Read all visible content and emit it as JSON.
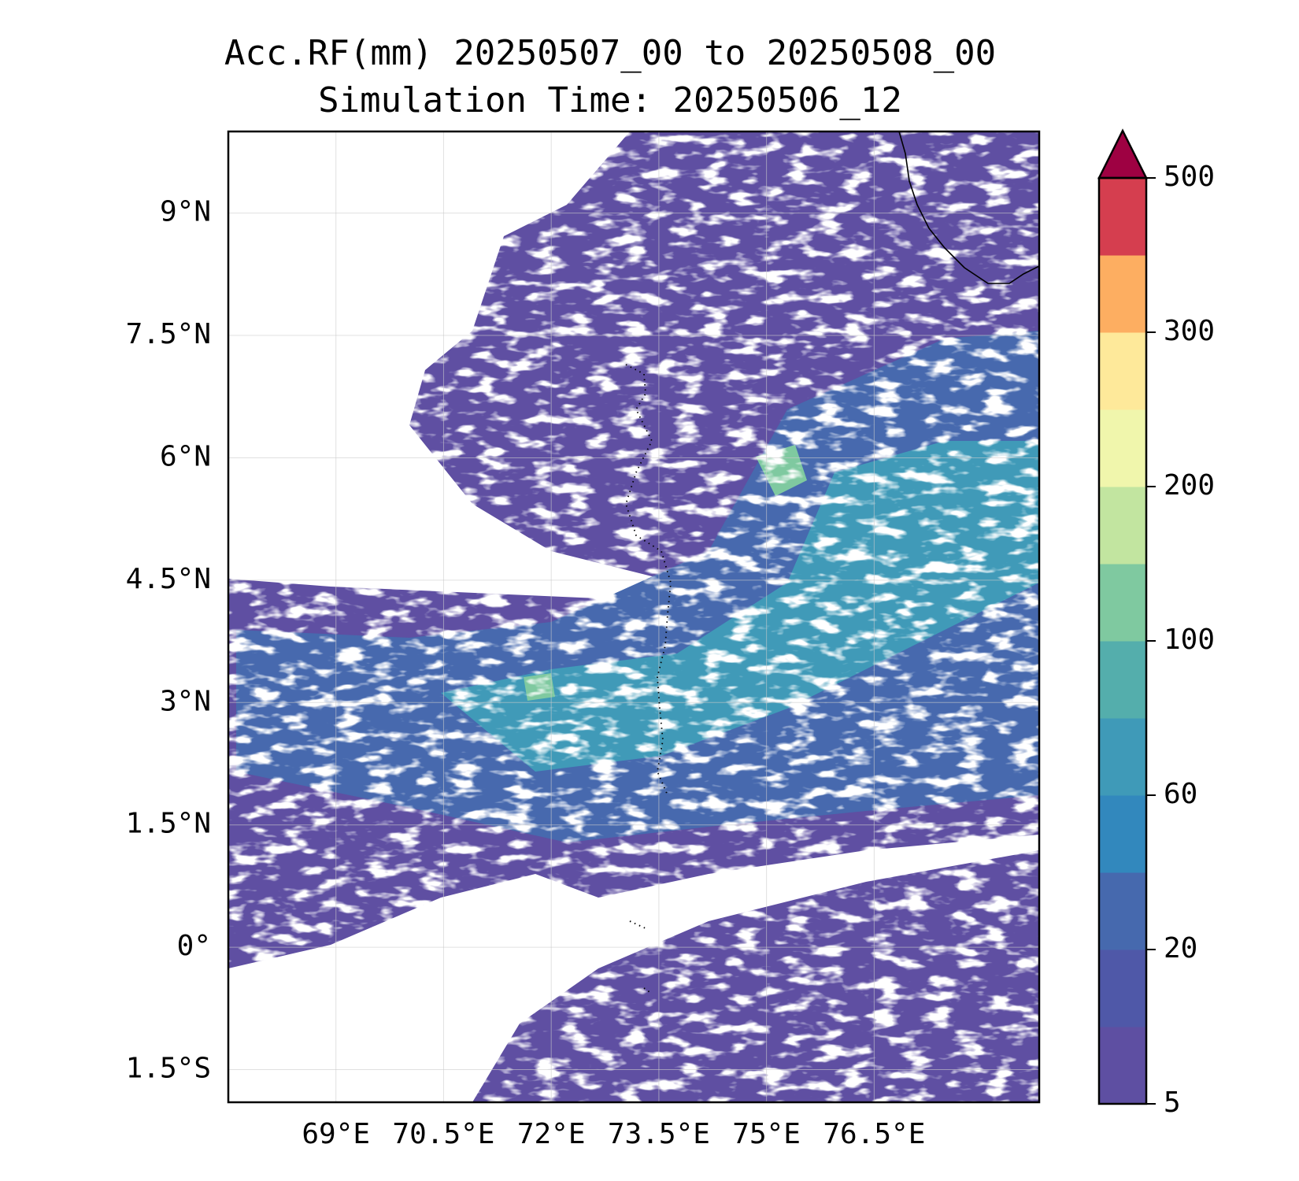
{
  "title": {
    "line1": "Acc.RF(mm) 20250507_00 to 20250508_00",
    "line2": "Simulation Time: 20250506_12"
  },
  "map": {
    "lon_range": [
      67.5,
      78.8
    ],
    "lat_range": [
      -1.9,
      10.0
    ],
    "lon_ticks": [
      {
        "value": 69.0,
        "label": "69°E"
      },
      {
        "value": 70.5,
        "label": "70.5°E"
      },
      {
        "value": 72.0,
        "label": "72°E"
      },
      {
        "value": 73.5,
        "label": "73.5°E"
      },
      {
        "value": 75.0,
        "label": "75°E"
      },
      {
        "value": 76.5,
        "label": "76.5°E"
      }
    ],
    "lat_ticks": [
      {
        "value": 9.0,
        "label": "9°N"
      },
      {
        "value": 7.5,
        "label": "7.5°N"
      },
      {
        "value": 6.0,
        "label": "6°N"
      },
      {
        "value": 4.5,
        "label": "4.5°N"
      },
      {
        "value": 3.0,
        "label": "3°N"
      },
      {
        "value": 1.5,
        "label": "1.5°N"
      },
      {
        "value": 0.0,
        "label": "0°"
      },
      {
        "value": -1.5,
        "label": "1.5°S"
      }
    ],
    "gridlines": true
  },
  "colorbar": {
    "levels": [
      5,
      10,
      20,
      40,
      60,
      80,
      100,
      150,
      200,
      250,
      300,
      400,
      500
    ],
    "colors": [
      "#5e4fa2",
      "#4f58a8",
      "#4669ae",
      "#3288bd",
      "#3f9ab8",
      "#54aeac",
      "#7fc9a0",
      "#c2e5a0",
      "#f0f6ac",
      "#fee99a",
      "#fdae61",
      "#d53e4f"
    ],
    "extend_color": "#9e0142",
    "tick_labels": [
      {
        "value": 5,
        "label": "5"
      },
      {
        "value": 20,
        "label": "20"
      },
      {
        "value": 60,
        "label": "60"
      },
      {
        "value": 100,
        "label": "100"
      },
      {
        "value": 200,
        "label": "200"
      },
      {
        "value": 300,
        "label": "300"
      },
      {
        "value": 500,
        "label": "500"
      }
    ]
  }
}
